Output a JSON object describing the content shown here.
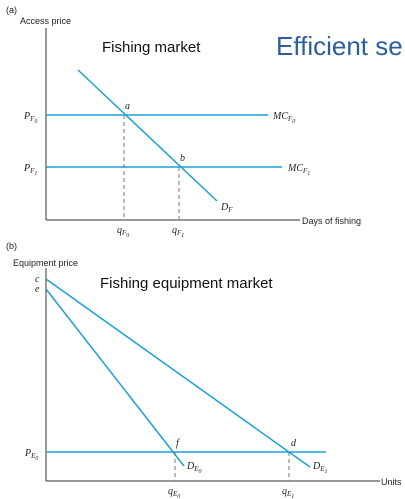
{
  "panel_a": {
    "tag": "(a)",
    "y_axis_label": "Access price",
    "x_axis_label": "Days of fishing",
    "title": "Fishing market",
    "banner": "Efficient se",
    "price_labels": [
      {
        "main": "P",
        "sub": "F",
        "subsub": "0"
      },
      {
        "main": "P",
        "sub": "F",
        "subsub": "1"
      }
    ],
    "mc_labels": [
      {
        "main": "MC",
        "sub": "F",
        "subsub": "0"
      },
      {
        "main": "MC",
        "sub": "F",
        "subsub": "1"
      }
    ],
    "q_labels": [
      {
        "main": "q",
        "sub": "F",
        "subsub": "0"
      },
      {
        "main": "q",
        "sub": "F",
        "subsub": "1"
      }
    ],
    "demand_label": {
      "main": "D",
      "sub": "F"
    },
    "points": [
      "a",
      "b"
    ]
  },
  "panel_b": {
    "tag": "(b)",
    "y_axis_label": "Equipment price",
    "x_axis_label": "Units",
    "title": "Fishing equipment market",
    "intercepts": [
      "c",
      "e"
    ],
    "price_label": {
      "main": "P",
      "sub": "E",
      "subsub": "0"
    },
    "q_labels": [
      {
        "main": "q",
        "sub": "E",
        "subsub": "0"
      },
      {
        "main": "q",
        "sub": "E",
        "subsub": "1"
      }
    ],
    "demand_labels": [
      {
        "main": "D",
        "sub": "E",
        "subsub": "0"
      },
      {
        "main": "D",
        "sub": "E",
        "subsub": "1"
      }
    ],
    "points": [
      "f",
      "d"
    ]
  },
  "colors": {
    "line": "#1aa0d8",
    "axis": "#333333",
    "dash": "#777777",
    "banner": "#2c5f9e"
  }
}
